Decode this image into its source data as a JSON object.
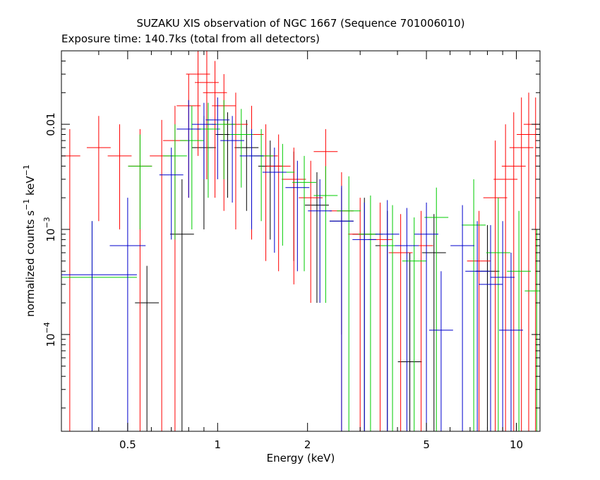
{
  "chart_data": {
    "type": "scatter",
    "title": "SUZAKU XIS observation of NGC 1667 (Sequence 701006010)",
    "subtitle": "Exposure time: 140.7ks (total from all detectors)",
    "xlabel": "Energy (keV)",
    "ylabel": {
      "prefix": "normalized counts s",
      "exp1": "−1",
      "middle": " keV",
      "exp2": "−1"
    },
    "x_scale": "log",
    "y_scale": "log",
    "xlim": [
      0.3,
      12
    ],
    "ylim": [
      1.2e-05,
      0.05
    ],
    "x_ticks": [
      {
        "label": "0.5",
        "value": 0.5
      },
      {
        "label": "1",
        "value": 1
      },
      {
        "label": "2",
        "value": 2
      },
      {
        "label": "5",
        "value": 5
      },
      {
        "label": "10",
        "value": 10
      }
    ],
    "y_ticks": [
      {
        "base": "0.01",
        "exp": "",
        "value": 0.01
      },
      {
        "base": "10",
        "exp": "−3",
        "value": 0.001
      },
      {
        "base": "10",
        "exp": "−4",
        "value": 0.0001
      }
    ],
    "grid": false,
    "legend": "none",
    "series": [
      {
        "color": "#000000",
        "points": [
          [
            0.58,
            0.0002,
            0.04,
            1.2e-05,
            0.00045
          ],
          [
            0.76,
            0.0009,
            0.04,
            1.2e-05,
            0.003
          ],
          [
            0.9,
            0.006,
            0.04,
            0.001,
            0.012
          ],
          [
            1.08,
            0.008,
            0.04,
            0.002,
            0.013
          ],
          [
            1.25,
            0.006,
            0.04,
            0.0015,
            0.011
          ],
          [
            1.5,
            0.004,
            0.04,
            0.0008,
            0.007
          ],
          [
            1.8,
            0.003,
            0.04,
            0.0005,
            0.0055
          ],
          [
            2.15,
            0.0017,
            0.04,
            0.0002,
            0.0035
          ],
          [
            2.6,
            0.0012,
            0.04,
            0.0001,
            0.0025
          ],
          [
            3.1,
            0.0009,
            0.04,
            1.2e-05,
            0.002
          ],
          [
            3.7,
            0.0007,
            0.04,
            1.2e-05,
            0.0015
          ],
          [
            4.4,
            5.5e-05,
            0.04,
            1.2e-05,
            0.0006
          ],
          [
            5.3,
            0.0006,
            0.04,
            1.2e-05,
            0.0014
          ],
          [
            8.0,
            0.0004,
            0.04,
            1.2e-05,
            0.0011
          ]
        ]
      },
      {
        "color": "#ff0000",
        "points": [
          [
            0.32,
            0.005,
            0.035,
            1.2e-05,
            0.009
          ],
          [
            0.4,
            0.006,
            0.04,
            0.0012,
            0.012
          ],
          [
            0.47,
            0.005,
            0.04,
            0.001,
            0.01
          ],
          [
            0.55,
            0.004,
            0.04,
            1.2e-05,
            0.009
          ],
          [
            0.65,
            0.005,
            0.04,
            1.2e-05,
            0.011
          ],
          [
            0.72,
            0.007,
            0.04,
            1.2e-05,
            0.015
          ],
          [
            0.8,
            0.015,
            0.04,
            0.002,
            0.03
          ],
          [
            0.86,
            0.03,
            0.04,
            0.005,
            0.05
          ],
          [
            0.92,
            0.025,
            0.04,
            0.003,
            0.05
          ],
          [
            0.98,
            0.02,
            0.04,
            0.002,
            0.04
          ],
          [
            1.05,
            0.015,
            0.04,
            0.0015,
            0.03
          ],
          [
            1.15,
            0.01,
            0.04,
            0.001,
            0.02
          ],
          [
            1.3,
            0.008,
            0.04,
            0.0008,
            0.015
          ],
          [
            1.45,
            0.005,
            0.04,
            0.0005,
            0.01
          ],
          [
            1.6,
            0.004,
            0.04,
            0.0004,
            0.008
          ],
          [
            1.8,
            0.003,
            0.04,
            0.0003,
            0.006
          ],
          [
            2.05,
            0.002,
            0.04,
            0.0002,
            0.0045
          ],
          [
            2.3,
            0.0055,
            0.04,
            0.002,
            0.009
          ],
          [
            2.6,
            0.0015,
            0.04,
            1.2e-05,
            0.0035
          ],
          [
            3.0,
            0.0009,
            0.04,
            1.2e-05,
            0.002
          ],
          [
            3.5,
            0.0008,
            0.04,
            1.2e-05,
            0.0018
          ],
          [
            4.1,
            0.0006,
            0.04,
            1.2e-05,
            0.0014
          ],
          [
            4.8,
            0.0007,
            0.04,
            1.2e-05,
            0.0015
          ],
          [
            7.5,
            0.0005,
            0.04,
            1.2e-05,
            0.0015
          ],
          [
            8.5,
            0.002,
            0.04,
            1.2e-05,
            0.007
          ],
          [
            9.2,
            0.003,
            0.04,
            1.2e-05,
            0.01
          ],
          [
            9.8,
            0.004,
            0.04,
            1.2e-05,
            0.013
          ],
          [
            10.4,
            0.006,
            0.04,
            1.2e-05,
            0.018
          ],
          [
            11.0,
            0.008,
            0.04,
            1.2e-05,
            0.02
          ],
          [
            11.6,
            0.01,
            0.04,
            1.2e-05,
            0.018
          ]
        ]
      },
      {
        "color": "#00cc00",
        "points": [
          [
            0.38,
            0.00035,
            0.15,
            1.2e-05,
            0.0012
          ],
          [
            0.55,
            0.004,
            0.04,
            0.001,
            0.008
          ],
          [
            0.72,
            0.005,
            0.04,
            0.0008,
            0.01
          ],
          [
            0.82,
            0.007,
            0.04,
            0.001,
            0.015
          ],
          [
            0.93,
            0.009,
            0.04,
            0.002,
            0.016
          ],
          [
            1.05,
            0.01,
            0.04,
            0.003,
            0.017
          ],
          [
            1.2,
            0.008,
            0.04,
            0.0025,
            0.014
          ],
          [
            1.4,
            0.005,
            0.04,
            0.0012,
            0.009
          ],
          [
            1.65,
            0.0035,
            0.04,
            0.0007,
            0.0065
          ],
          [
            1.95,
            0.0028,
            0.04,
            0.0004,
            0.005
          ],
          [
            2.3,
            0.0021,
            0.04,
            0.0002,
            0.004
          ],
          [
            2.75,
            0.0015,
            0.04,
            1.2e-05,
            0.0032
          ],
          [
            3.25,
            0.0009,
            0.04,
            1.2e-05,
            0.0021
          ],
          [
            3.85,
            0.0007,
            0.04,
            1.2e-05,
            0.0017
          ],
          [
            4.55,
            0.0005,
            0.04,
            1.2e-05,
            0.0013
          ],
          [
            5.4,
            0.0013,
            0.04,
            1.2e-05,
            0.0025
          ],
          [
            7.2,
            0.0011,
            0.04,
            1.2e-05,
            0.003
          ],
          [
            8.7,
            0.0006,
            0.04,
            1.2e-05,
            0.002
          ],
          [
            10.2,
            0.0004,
            0.04,
            1.2e-05,
            0.0015
          ],
          [
            11.7,
            0.00026,
            0.04,
            1.2e-05,
            0.001
          ]
        ]
      },
      {
        "color": "#0000cc",
        "points": [
          [
            0.38,
            0.00037,
            0.15,
            1.2e-05,
            0.0012
          ],
          [
            0.5,
            0.0007,
            0.06,
            1.2e-05,
            0.002
          ],
          [
            0.7,
            0.0033,
            0.04,
            0.0008,
            0.006
          ],
          [
            0.8,
            0.009,
            0.04,
            0.002,
            0.017
          ],
          [
            0.9,
            0.01,
            0.04,
            0.003,
            0.016
          ],
          [
            1.0,
            0.011,
            0.04,
            0.003,
            0.018
          ],
          [
            1.12,
            0.007,
            0.04,
            0.0018,
            0.012
          ],
          [
            1.3,
            0.005,
            0.04,
            0.001,
            0.009
          ],
          [
            1.55,
            0.0035,
            0.04,
            0.0006,
            0.006
          ],
          [
            1.85,
            0.0025,
            0.04,
            0.0004,
            0.0045
          ],
          [
            2.2,
            0.0015,
            0.04,
            0.0002,
            0.003
          ],
          [
            2.6,
            0.0012,
            0.04,
            1.2e-05,
            0.0026
          ],
          [
            3.1,
            0.0008,
            0.04,
            1.2e-05,
            0.0018
          ],
          [
            3.7,
            0.0009,
            0.04,
            1.2e-05,
            0.0019
          ],
          [
            4.3,
            0.0007,
            0.04,
            1.2e-05,
            0.0016
          ],
          [
            5.0,
            0.0009,
            0.04,
            1.2e-05,
            0.0018
          ],
          [
            5.6,
            0.00011,
            0.04,
            1.2e-05,
            0.0004
          ],
          [
            6.6,
            0.0007,
            0.04,
            1.2e-05,
            0.0017
          ],
          [
            7.4,
            0.0004,
            0.04,
            1.2e-05,
            0.0012
          ],
          [
            8.2,
            0.0003,
            0.04,
            1.2e-05,
            0.0011
          ],
          [
            9.0,
            0.00035,
            0.04,
            1.2e-05,
            0.0012
          ],
          [
            9.6,
            0.00011,
            0.04,
            1.2e-05,
            0.0006
          ]
        ]
      }
    ]
  }
}
